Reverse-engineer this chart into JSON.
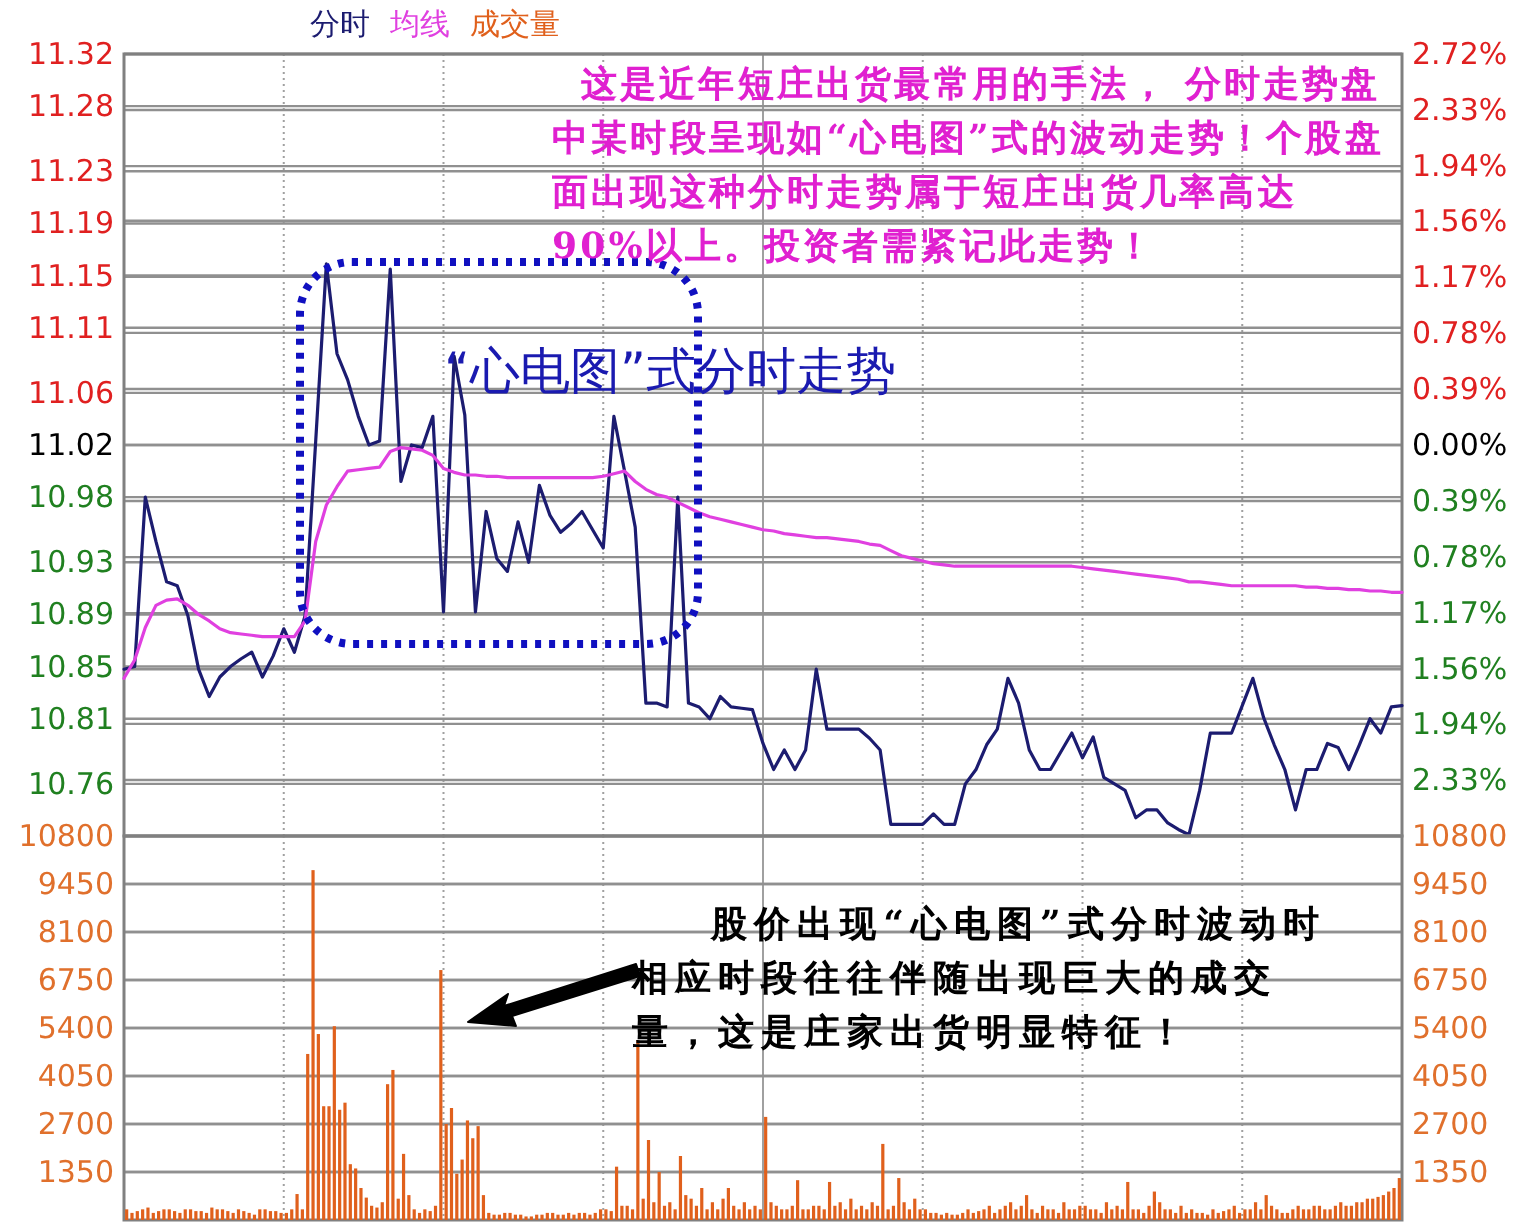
{
  "chart_data": [
    {
      "type": "line",
      "grid": true,
      "annotations": [
        "这是近年短庄出货最常用的手法， 分时走势盘中某时段呈现如“心电图”式的波动走势！个股盘面出现这种分时走势属于短庄出货几率高达 90%以上。投资者需紧记此走势！",
        "“心电图”式分时走势"
      ],
      "categories": [
        null,
        null,
        null,
        null,
        null,
        null,
        null,
        null,
        null,
        null,
        null,
        null,
        null,
        null,
        null,
        null,
        null,
        null,
        null,
        null,
        null,
        null,
        null,
        null,
        null,
        null,
        null,
        null,
        null,
        null,
        null,
        null,
        null,
        null,
        null,
        null,
        null,
        null,
        null,
        null,
        null,
        null,
        null,
        null,
        null,
        null,
        null,
        null,
        null,
        null,
        null,
        null,
        null,
        null,
        null,
        null,
        null,
        null,
        null,
        null,
        null,
        null,
        null,
        null,
        null,
        null,
        null,
        null,
        null,
        null,
        null,
        null,
        null,
        null,
        null,
        null,
        null,
        null,
        null,
        null,
        null,
        null,
        null,
        null,
        null,
        null,
        null,
        null,
        null,
        null,
        null,
        null,
        null,
        null,
        null,
        null,
        null,
        null,
        null,
        null,
        null,
        null,
        null,
        null,
        null,
        null,
        null,
        null,
        null,
        null,
        null,
        null,
        null,
        null,
        null,
        null,
        null,
        null,
        null,
        null,
        null
      ],
      "ylim": [
        10.72,
        11.32
      ],
      "yticks": [
        11.32,
        11.28,
        11.23,
        11.19,
        11.15,
        11.11,
        11.06,
        11.02,
        10.98,
        10.93,
        10.89,
        10.85,
        10.81,
        10.76
      ],
      "y2lim": [
        -2.72,
        2.72
      ],
      "y2ticks": [
        {
          "value": 2.72,
          "label": "2.72%"
        },
        {
          "value": 2.33,
          "label": "2.33%"
        },
        {
          "value": 1.94,
          "label": "1.94%"
        },
        {
          "value": 1.56,
          "label": "1.56%"
        },
        {
          "value": 1.17,
          "label": "1.17%"
        },
        {
          "value": 0.78,
          "label": "0.78%"
        },
        {
          "value": 0.39,
          "label": "0.39%"
        },
        {
          "value": 0,
          "label": "0.00%"
        },
        {
          "value": -0.39,
          "label": "0.39%"
        },
        {
          "value": -0.78,
          "label": "0.78%"
        },
        {
          "value": -1.17,
          "label": "1.17%"
        },
        {
          "value": -1.56,
          "label": "1.56%"
        },
        {
          "value": -1.94,
          "label": "1.94%"
        },
        {
          "value": -2.33,
          "label": "2.33%"
        }
      ],
      "series": [
        {
          "name": "分时",
          "color": "#1c1c70",
          "values": [
            10.848,
            10.85,
            10.98,
            10.946,
            10.915,
            10.912,
            10.889,
            10.848,
            10.827,
            10.842,
            10.85,
            10.856,
            10.861,
            10.842,
            10.858,
            10.879,
            10.861,
            10.889,
            11.023,
            11.159,
            11.09,
            11.07,
            11.042,
            11.02,
            11.023,
            11.155,
            10.992,
            11.02,
            11.018,
            11.042,
            10.892,
            11.088,
            11.043,
            10.892,
            10.969,
            10.933,
            10.923,
            10.961,
            10.93,
            10.989,
            10.966,
            10.953,
            10.96,
            10.969,
            10.955,
            10.941,
            11.042,
            11.0,
            10.957,
            10.822,
            10.822,
            10.819,
            10.98,
            10.822,
            10.819,
            10.81,
            10.827,
            10.819,
            10.818,
            10.817,
            10.791,
            10.771,
            10.786,
            10.771,
            10.786,
            10.848,
            10.802,
            10.802,
            10.802,
            10.802,
            10.795,
            10.786,
            10.729,
            10.729,
            10.729,
            10.729,
            10.737,
            10.729,
            10.729,
            10.76,
            10.771,
            10.79,
            10.802,
            10.841,
            10.822,
            10.786,
            10.771,
            10.771,
            10.785,
            10.799,
            10.78,
            10.796,
            10.765,
            10.76,
            10.755,
            10.734,
            10.74,
            10.74,
            10.73,
            10.725,
            10.721,
            10.755,
            10.799,
            10.799,
            10.799,
            10.82,
            10.841,
            10.811,
            10.79,
            10.771,
            10.74,
            10.771,
            10.771,
            10.791,
            10.788,
            10.771,
            10.79,
            10.81,
            10.799,
            10.819,
            10.82
          ]
        },
        {
          "name": "均线",
          "color": "#e040e0",
          "values": [
            10.841,
            10.855,
            10.88,
            10.897,
            10.901,
            10.902,
            10.897,
            10.89,
            10.885,
            10.879,
            10.876,
            10.875,
            10.874,
            10.873,
            10.873,
            10.873,
            10.873,
            10.885,
            10.946,
            10.974,
            10.988,
            11.0,
            11.001,
            11.002,
            11.003,
            11.015,
            11.018,
            11.017,
            11.016,
            11.012,
            11.002,
            10.999,
            10.997,
            10.997,
            10.996,
            10.996,
            10.995,
            10.995,
            10.995,
            10.995,
            10.995,
            10.995,
            10.995,
            10.995,
            10.995,
            10.996,
            10.998,
            11.0,
            10.992,
            10.986,
            10.982,
            10.98,
            10.976,
            10.972,
            10.968,
            10.965,
            10.963,
            10.961,
            10.959,
            10.957,
            10.955,
            10.954,
            10.952,
            10.951,
            10.95,
            10.949,
            10.949,
            10.948,
            10.947,
            10.946,
            10.944,
            10.943,
            10.939,
            10.935,
            10.933,
            10.931,
            10.929,
            10.928,
            10.927,
            10.927,
            10.927,
            10.927,
            10.927,
            10.927,
            10.927,
            10.927,
            10.927,
            10.927,
            10.927,
            10.927,
            10.926,
            10.925,
            10.924,
            10.923,
            10.922,
            10.921,
            10.92,
            10.919,
            10.918,
            10.917,
            10.915,
            10.915,
            10.914,
            10.913,
            10.912,
            10.912,
            10.912,
            10.912,
            10.912,
            10.912,
            10.912,
            10.911,
            10.911,
            10.91,
            10.91,
            10.909,
            10.909,
            10.908,
            10.908,
            10.907,
            10.907
          ]
        }
      ]
    },
    {
      "type": "bar",
      "grid": true,
      "annotations": [
        "股价出现“心电图”式分时波动时相应时段往往伴随出现巨大的成交量，这是庄家出货明显特征！"
      ],
      "categories": [
        null,
        null,
        null,
        null,
        null,
        null,
        null,
        null,
        null,
        null,
        null,
        null,
        null,
        null,
        null,
        null,
        null,
        null,
        null,
        null,
        null,
        null,
        null,
        null,
        null,
        null,
        null,
        null,
        null,
        null,
        null,
        null,
        null,
        null,
        null,
        null,
        null,
        null,
        null,
        null,
        null,
        null,
        null,
        null,
        null,
        null,
        null,
        null,
        null,
        null,
        null,
        null,
        null,
        null,
        null,
        null,
        null,
        null,
        null,
        null,
        null,
        null,
        null,
        null,
        null,
        null,
        null,
        null,
        null,
        null,
        null,
        null,
        null,
        null,
        null,
        null,
        null,
        null,
        null,
        null,
        null,
        null,
        null,
        null,
        null,
        null,
        null,
        null,
        null,
        null,
        null,
        null,
        null,
        null,
        null,
        null,
        null,
        null,
        null,
        null,
        null,
        null,
        null,
        null,
        null,
        null,
        null,
        null,
        null,
        null,
        null,
        null,
        null,
        null,
        null,
        null,
        null,
        null,
        null,
        null,
        null,
        null,
        null,
        null,
        null,
        null,
        null,
        null,
        null,
        null,
        null,
        null,
        null,
        null,
        null,
        null,
        null,
        null,
        null,
        null,
        null,
        null,
        null,
        null,
        null,
        null,
        null,
        null,
        null,
        null,
        null,
        null,
        null,
        null,
        null,
        null,
        null,
        null,
        null,
        null,
        null,
        null,
        null,
        null,
        null,
        null,
        null,
        null,
        null,
        null,
        null,
        null,
        null,
        null,
        null,
        null,
        null,
        null,
        null,
        null,
        null,
        null,
        null,
        null,
        null,
        null,
        null,
        null,
        null,
        null,
        null,
        null,
        null,
        null,
        null,
        null,
        null,
        null,
        null,
        null,
        null,
        null,
        null,
        null,
        null,
        null,
        null,
        null,
        null,
        null,
        null,
        null,
        null,
        null,
        null,
        null,
        null,
        null,
        null,
        null,
        null,
        null,
        null,
        null,
        null,
        null,
        null,
        null,
        null,
        null,
        null,
        null,
        null,
        null,
        null,
        null,
        null,
        null,
        null,
        null
      ],
      "ylim": [
        0,
        10800
      ],
      "yticks": [
        1350,
        2700,
        4050,
        5400,
        6750,
        8100,
        9450,
        10800
      ],
      "y2lim": [
        0,
        10800
      ],
      "y2ticks": [
        1350,
        2700,
        4050,
        5400,
        6750,
        8100,
        9450,
        10800
      ],
      "series": [
        {
          "name": "成交量",
          "color": "#e0601c",
          "values": [
            300,
            200,
            250,
            300,
            350,
            200,
            250,
            300,
            300,
            250,
            200,
            300,
            300,
            250,
            250,
            200,
            350,
            300,
            300,
            250,
            200,
            300,
            250,
            200,
            150,
            300,
            300,
            250,
            250,
            200,
            200,
            300,
            730,
            300,
            4670,
            9840,
            5230,
            3200,
            3200,
            5450,
            3100,
            3300,
            1570,
            1450,
            900,
            630,
            400,
            350,
            500,
            3820,
            4220,
            600,
            1860,
            700,
            300,
            200,
            300,
            250,
            400,
            7030,
            2700,
            3150,
            1300,
            1700,
            2800,
            2300,
            2640,
            700,
            200,
            150,
            150,
            200,
            200,
            150,
            150,
            100,
            100,
            150,
            150,
            200,
            200,
            150,
            150,
            200,
            150,
            200,
            200,
            150,
            200,
            300,
            300,
            250,
            1500,
            400,
            400,
            300,
            5060,
            600,
            2250,
            500,
            1350,
            400,
            500,
            300,
            1800,
            700,
            600,
            400,
            900,
            300,
            500,
            300,
            600,
            900,
            400,
            300,
            500,
            300,
            400,
            300,
            2900,
            500,
            400,
            300,
            300,
            400,
            1120,
            300,
            300,
            400,
            400,
            300,
            1070,
            400,
            500,
            300,
            600,
            300,
            400,
            300,
            500,
            400,
            2140,
            300,
            400,
            1180,
            500,
            300,
            600,
            300,
            300,
            200,
            200,
            150,
            200,
            150,
            150,
            200,
            300,
            200,
            250,
            300,
            400,
            200,
            300,
            400,
            500,
            300,
            400,
            700,
            300,
            200,
            400,
            300,
            300,
            200,
            500,
            300,
            300,
            400,
            400,
            300,
            300,
            200,
            500,
            300,
            400,
            300,
            1070,
            300,
            300,
            200,
            400,
            800,
            500,
            300,
            300,
            200,
            400,
            200,
            300,
            200,
            200,
            150,
            300,
            200,
            250,
            300,
            400,
            200,
            300,
            300,
            500,
            300,
            700,
            400,
            300,
            200,
            200,
            300,
            400,
            300,
            300,
            400,
            400,
            300,
            300,
            400,
            500,
            400,
            400,
            500,
            500,
            600,
            600,
            650,
            700,
            800,
            900,
            1180
          ]
        }
      ]
    }
  ]
}
